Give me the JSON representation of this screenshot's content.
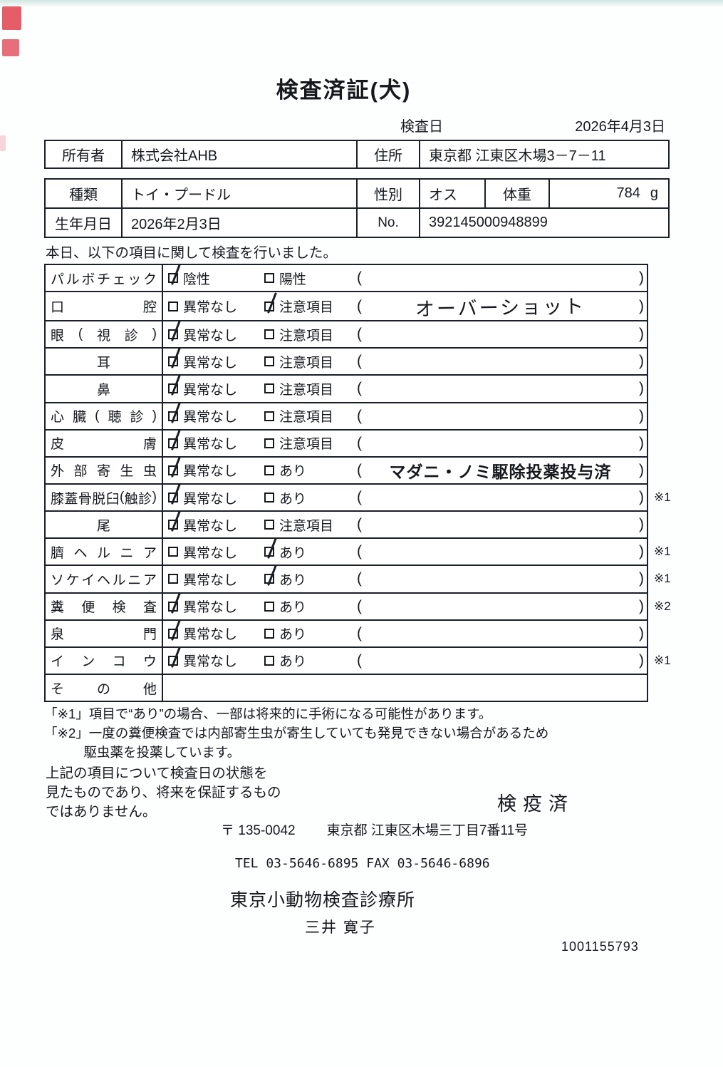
{
  "header": {
    "title": "検査済証(犬)",
    "inspection_date_label": "検査日",
    "inspection_date": "2026年4月3日"
  },
  "owner_table": {
    "owner_label": "所有者",
    "owner_value": "株式会社AHB",
    "address_label": "住所",
    "address_value": "東京都 江東区木場3－7－11"
  },
  "pet_table": {
    "breed_label": "種類",
    "breed_value": "トイ・プードル",
    "sex_label": "性別",
    "sex_value": "オス",
    "weight_label": "体重",
    "weight_value": "784",
    "weight_unit": "g",
    "birth_label": "生年月日",
    "birth_value": "2026年2月3日",
    "no_label": "No.",
    "no_value": "392145000948899"
  },
  "intro": "本日、以下の項目に関して検査を行いました。",
  "checklist": {
    "paren_open": "(",
    "paren_close": ")",
    "rows": [
      {
        "label": "パルボチェック",
        "align": "justify",
        "options": [
          {
            "text": "陰性",
            "checked": true
          },
          {
            "text": "陽性",
            "checked": false
          }
        ],
        "note": "",
        "note_style": "",
        "ref": ""
      },
      {
        "label": "口腔",
        "align": "justify",
        "options": [
          {
            "text": "異常なし",
            "checked": false
          },
          {
            "text": "注意項目",
            "checked": true
          }
        ],
        "note": "オーバーショット",
        "note_style": "hand-large",
        "ref": ""
      },
      {
        "label": "眼(視診)",
        "align": "justify",
        "options": [
          {
            "text": "異常なし",
            "checked": true
          },
          {
            "text": "注意項目",
            "checked": false
          }
        ],
        "note": "",
        "note_style": "",
        "ref": ""
      },
      {
        "label": "耳",
        "align": "center",
        "options": [
          {
            "text": "異常なし",
            "checked": true
          },
          {
            "text": "注意項目",
            "checked": false
          }
        ],
        "note": "",
        "note_style": "",
        "ref": ""
      },
      {
        "label": "鼻",
        "align": "center",
        "options": [
          {
            "text": "異常なし",
            "checked": true
          },
          {
            "text": "注意項目",
            "checked": false
          }
        ],
        "note": "",
        "note_style": "",
        "ref": ""
      },
      {
        "label": "心臓(聴診)",
        "align": "justify",
        "options": [
          {
            "text": "異常なし",
            "checked": true
          },
          {
            "text": "注意項目",
            "checked": false
          }
        ],
        "note": "",
        "note_style": "",
        "ref": ""
      },
      {
        "label": "皮膚",
        "align": "justify",
        "options": [
          {
            "text": "異常なし",
            "checked": true
          },
          {
            "text": "注意項目",
            "checked": false
          }
        ],
        "note": "",
        "note_style": "",
        "ref": ""
      },
      {
        "label": "外部寄生虫",
        "align": "justify",
        "options": [
          {
            "text": "異常なし",
            "checked": true
          },
          {
            "text": "あり",
            "checked": false
          }
        ],
        "note": "マダニ・ノミ駆除投薬投与済",
        "note_style": "hand",
        "ref": ""
      },
      {
        "label": "膝蓋骨脱臼(触診)",
        "align": "justify",
        "options": [
          {
            "text": "異常なし",
            "checked": true
          },
          {
            "text": "あり",
            "checked": false
          }
        ],
        "note": "",
        "note_style": "",
        "ref": "※1"
      },
      {
        "label": "尾",
        "align": "center",
        "options": [
          {
            "text": "異常なし",
            "checked": true
          },
          {
            "text": "注意項目",
            "checked": false
          }
        ],
        "note": "",
        "note_style": "",
        "ref": ""
      },
      {
        "label": "臍ヘルニア",
        "align": "justify",
        "options": [
          {
            "text": "異常なし",
            "checked": false
          },
          {
            "text": "あり",
            "checked": true
          }
        ],
        "note": "",
        "note_style": "",
        "ref": "※1"
      },
      {
        "label": "ソケイヘルニア",
        "align": "justify",
        "options": [
          {
            "text": "異常なし",
            "checked": false
          },
          {
            "text": "あり",
            "checked": true
          }
        ],
        "note": "",
        "note_style": "",
        "ref": "※1"
      },
      {
        "label": "糞便検査",
        "align": "justify",
        "options": [
          {
            "text": "異常なし",
            "checked": true
          },
          {
            "text": "あり",
            "checked": false
          }
        ],
        "note": "",
        "note_style": "",
        "ref": "※2"
      },
      {
        "label": "泉門",
        "align": "justify",
        "options": [
          {
            "text": "異常なし",
            "checked": true
          },
          {
            "text": "あり",
            "checked": false
          }
        ],
        "note": "",
        "note_style": "",
        "ref": ""
      },
      {
        "label": "インコウ",
        "align": "justify",
        "options": [
          {
            "text": "異常なし",
            "checked": true
          },
          {
            "text": "あり",
            "checked": false
          }
        ],
        "note": "",
        "note_style": "",
        "ref": "※1"
      },
      {
        "label": "その他",
        "align": "justify",
        "options": [],
        "note": null,
        "note_style": "",
        "ref": ""
      }
    ]
  },
  "notes": {
    "note1": "「※1」項目で“あり”の場合、一部は将来的に手術になる可能性があります。",
    "note2": "「※2」一度の糞便検査では内部寄生虫が寄生していても発見できない場合があるため\n　　　駆虫薬を投薬しています。"
  },
  "disclaimer": "上記の項目について検査日の状態を\n見たものであり、将来を保証するもの\nではありません。",
  "stamp": "検疫済",
  "footer": {
    "postal_code": "〒 135-0042",
    "address": "東京都 江東区木場三丁目7番11号",
    "tel_fax": "TEL 03-5646-6895  FAX 03-5646-6896",
    "clinic_name": "東京小動物検査診療所",
    "vet_name": "三井 寛子",
    "serial_number": "1001155793"
  }
}
